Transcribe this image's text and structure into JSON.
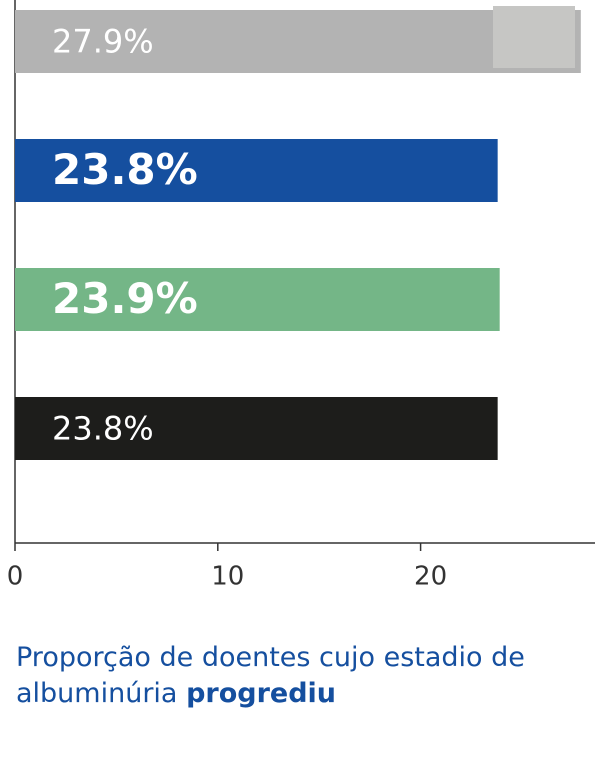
{
  "chart_data": {
    "type": "hbar",
    "categories": [
      null,
      null,
      null,
      null
    ],
    "values": [
      27.9,
      23.8,
      23.9,
      23.8
    ],
    "value_labels": [
      "27.9%",
      "23.8%",
      "23.9%",
      "23.8%"
    ],
    "colors": [
      "#b3b3b3",
      "#154f9f",
      "#74b687",
      "#1d1d1b"
    ],
    "label_bold": [
      false,
      true,
      true,
      false
    ],
    "xlim": [
      0,
      28.6
    ],
    "xticks": [
      0,
      10,
      20
    ],
    "caption": "Proporção de doentes cujo estadio de albuminúria",
    "caption_bold": "progrediu"
  }
}
